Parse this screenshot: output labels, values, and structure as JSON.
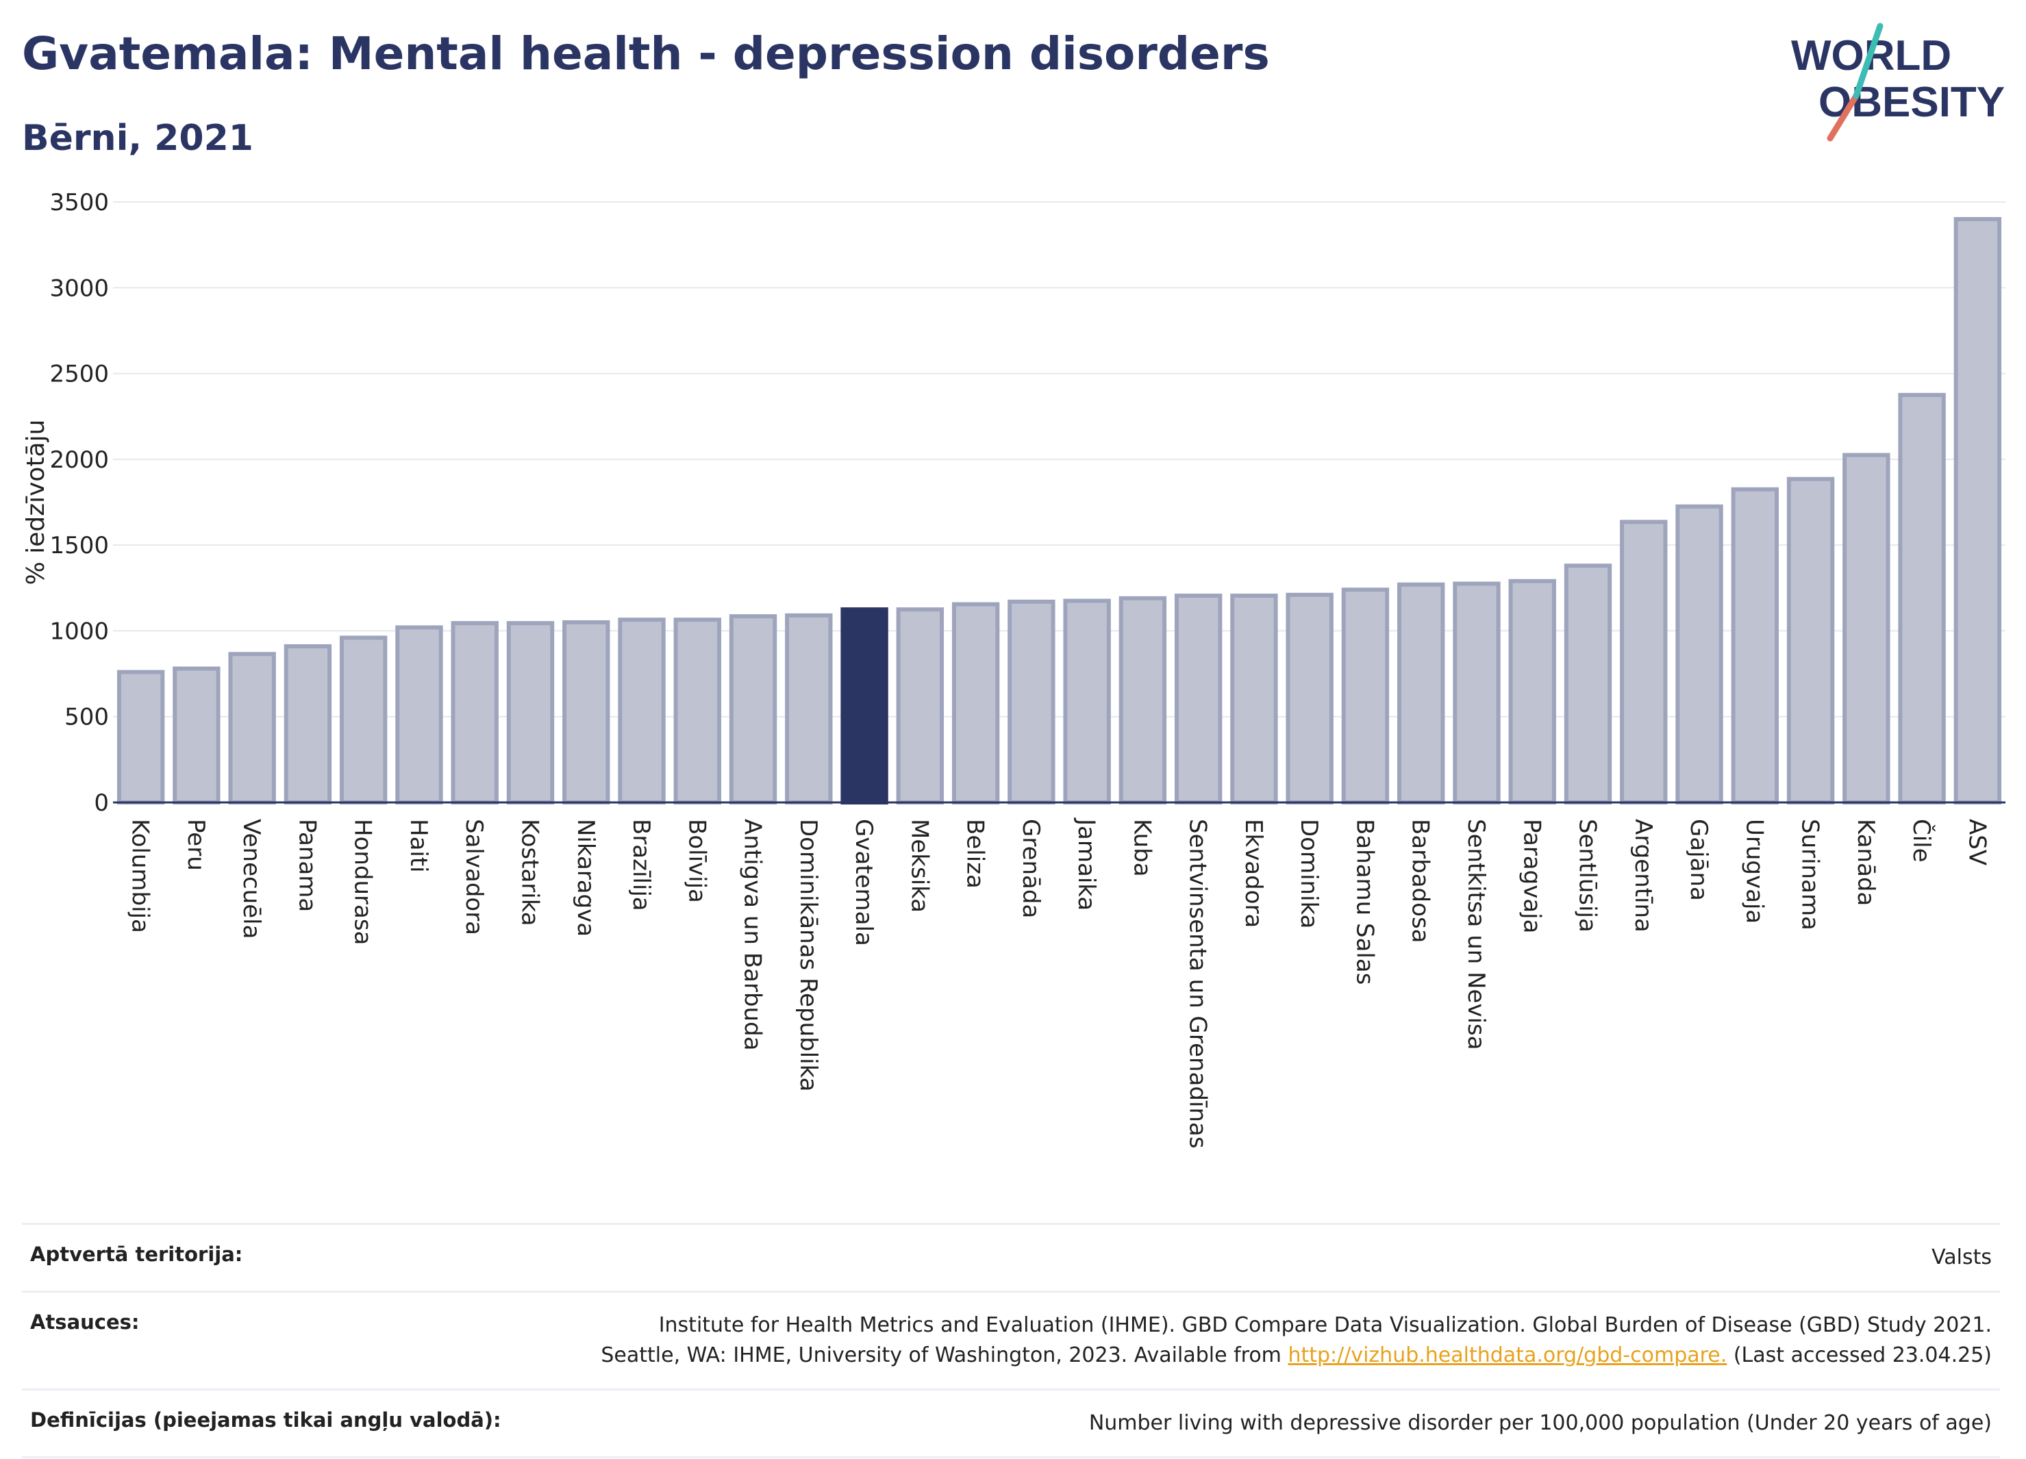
{
  "header": {
    "title": "Gvatemala: Mental health - depression disorders",
    "subtitle": "Bērni, 2021"
  },
  "logo": {
    "line1": "WORLD",
    "line2": "OBESITY"
  },
  "colors": {
    "highlight": "#2b3564",
    "bar": "#bfc3d1",
    "bar_border": "#9ea4bc",
    "link": "#e8a21c"
  },
  "chart_data": {
    "type": "bar",
    "ylabel": "% iedzīvotāju",
    "ylim": [
      0,
      3500
    ],
    "yticks": [
      0,
      500,
      1000,
      1500,
      2000,
      2500,
      3000,
      3500
    ],
    "grid": true,
    "highlight": "Gvatemala",
    "categories": [
      "Kolumbija",
      "Peru",
      "Venecuēla",
      "Panama",
      "Hondurasa",
      "Haiti",
      "Salvadora",
      "Kostarika",
      "Nikaragva",
      "Brazīlija",
      "Bolīvija",
      "Antigva un Barbuda",
      "Dominikānas Republika",
      "Gvatemala",
      "Meksika",
      "Beliza",
      "Grenāda",
      "Jamaika",
      "Kuba",
      "Sentvinsenta un Grenadīnas",
      "Ekvadora",
      "Dominika",
      "Bahamu Salas",
      "Barbadosa",
      "Sentkitsa un Nevisa",
      "Paragvaja",
      "Sentlūsija",
      "Argentīna",
      "Gajāna",
      "Urugvaja",
      "Surinama",
      "Kanāda",
      "Čile",
      "ASV"
    ],
    "values": [
      760,
      780,
      865,
      910,
      960,
      1020,
      1045,
      1045,
      1050,
      1065,
      1065,
      1085,
      1090,
      1125,
      1125,
      1155,
      1170,
      1175,
      1190,
      1205,
      1205,
      1210,
      1240,
      1270,
      1275,
      1290,
      1380,
      1635,
      1725,
      1825,
      1885,
      2025,
      2375,
      3400
    ]
  },
  "footer": {
    "territory_label": "Aptvertā teritorija:",
    "territory_value": "Valsts",
    "sources_label": "Atsauces:",
    "sources_line1": "Institute for Health Metrics and Evaluation (IHME). GBD Compare Data Visualization. Global Burden of Disease (GBD) Study 2021.",
    "sources_line2_prefix": "Seattle, WA: IHME, University of Washington, 2023. Available from ",
    "sources_link": "http://vizhub.healthdata.org/gbd-compare.",
    "sources_line2_suffix": " (Last accessed 23.04.25)",
    "definitions_label": "Definīcijas (pieejamas tikai angļu valodā):",
    "definitions_value": "Number living with depressive disorder per 100,000 population (Under 20 years of age)"
  }
}
